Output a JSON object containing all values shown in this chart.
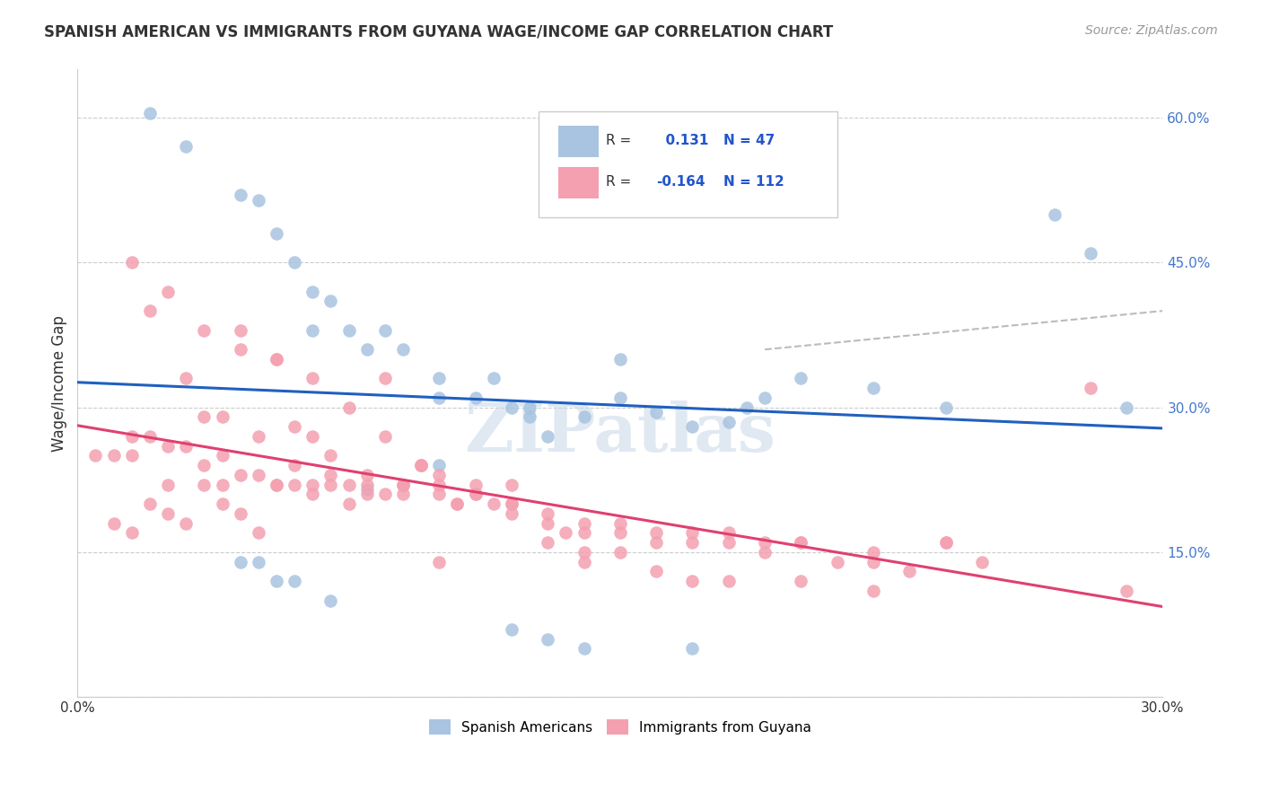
{
  "title": "SPANISH AMERICAN VS IMMIGRANTS FROM GUYANA WAGE/INCOME GAP CORRELATION CHART",
  "source": "Source: ZipAtlas.com",
  "ylabel": "Wage/Income Gap",
  "xlim": [
    0.0,
    0.3
  ],
  "ylim": [
    0.0,
    0.65
  ],
  "yticks_right": [
    0.0,
    0.15,
    0.3,
    0.45,
    0.6
  ],
  "yticklabels_right": [
    "",
    "15.0%",
    "30.0%",
    "45.0%",
    "60.0%"
  ],
  "blue_R": 0.131,
  "blue_N": 47,
  "pink_R": -0.164,
  "pink_N": 112,
  "blue_color": "#a8c4e0",
  "pink_color": "#f4a0b0",
  "blue_line_color": "#2060c0",
  "pink_line_color": "#e04070",
  "watermark": "ZIPatlas",
  "blue_scatter_x": [
    0.02,
    0.03,
    0.045,
    0.05,
    0.055,
    0.06,
    0.065,
    0.065,
    0.07,
    0.075,
    0.08,
    0.085,
    0.09,
    0.1,
    0.1,
    0.11,
    0.115,
    0.12,
    0.125,
    0.125,
    0.13,
    0.14,
    0.15,
    0.15,
    0.16,
    0.17,
    0.18,
    0.185,
    0.19,
    0.2,
    0.22,
    0.24,
    0.07,
    0.06,
    0.055,
    0.05,
    0.045,
    0.08,
    0.09,
    0.1,
    0.12,
    0.13,
    0.14,
    0.17,
    0.27,
    0.28,
    0.29
  ],
  "blue_scatter_y": [
    0.605,
    0.57,
    0.52,
    0.515,
    0.48,
    0.45,
    0.42,
    0.38,
    0.41,
    0.38,
    0.36,
    0.38,
    0.36,
    0.33,
    0.31,
    0.31,
    0.33,
    0.3,
    0.3,
    0.29,
    0.27,
    0.29,
    0.35,
    0.31,
    0.295,
    0.28,
    0.285,
    0.3,
    0.31,
    0.33,
    0.32,
    0.3,
    0.1,
    0.12,
    0.12,
    0.14,
    0.14,
    0.215,
    0.22,
    0.24,
    0.07,
    0.06,
    0.05,
    0.05,
    0.5,
    0.46,
    0.3
  ],
  "pink_scatter_x": [
    0.005,
    0.01,
    0.015,
    0.015,
    0.02,
    0.02,
    0.025,
    0.025,
    0.03,
    0.03,
    0.035,
    0.035,
    0.04,
    0.04,
    0.04,
    0.045,
    0.045,
    0.05,
    0.05,
    0.055,
    0.055,
    0.06,
    0.06,
    0.065,
    0.065,
    0.07,
    0.07,
    0.075,
    0.08,
    0.08,
    0.085,
    0.09,
    0.09,
    0.095,
    0.1,
    0.1,
    0.105,
    0.11,
    0.115,
    0.12,
    0.12,
    0.13,
    0.135,
    0.14,
    0.14,
    0.15,
    0.16,
    0.17,
    0.18,
    0.19,
    0.2,
    0.21,
    0.22,
    0.23,
    0.24,
    0.25,
    0.28,
    0.01,
    0.015,
    0.02,
    0.025,
    0.03,
    0.035,
    0.04,
    0.045,
    0.05,
    0.055,
    0.06,
    0.065,
    0.07,
    0.075,
    0.08,
    0.085,
    0.09,
    0.095,
    0.1,
    0.105,
    0.11,
    0.12,
    0.13,
    0.14,
    0.15,
    0.16,
    0.17,
    0.18,
    0.19,
    0.2,
    0.22,
    0.24,
    0.015,
    0.025,
    0.035,
    0.045,
    0.055,
    0.065,
    0.075,
    0.085,
    0.095,
    0.1,
    0.11,
    0.12,
    0.13,
    0.14,
    0.15,
    0.16,
    0.17,
    0.18,
    0.2,
    0.22,
    0.29
  ],
  "pink_scatter_y": [
    0.25,
    0.25,
    0.27,
    0.25,
    0.4,
    0.27,
    0.26,
    0.22,
    0.33,
    0.26,
    0.29,
    0.24,
    0.29,
    0.25,
    0.22,
    0.38,
    0.23,
    0.27,
    0.23,
    0.35,
    0.22,
    0.28,
    0.22,
    0.27,
    0.22,
    0.25,
    0.22,
    0.2,
    0.23,
    0.21,
    0.33,
    0.22,
    0.21,
    0.24,
    0.22,
    0.21,
    0.2,
    0.21,
    0.2,
    0.2,
    0.22,
    0.16,
    0.17,
    0.18,
    0.15,
    0.17,
    0.16,
    0.16,
    0.16,
    0.15,
    0.16,
    0.14,
    0.14,
    0.13,
    0.16,
    0.14,
    0.32,
    0.18,
    0.17,
    0.2,
    0.19,
    0.18,
    0.22,
    0.2,
    0.19,
    0.17,
    0.22,
    0.24,
    0.21,
    0.23,
    0.22,
    0.22,
    0.21,
    0.22,
    0.24,
    0.23,
    0.2,
    0.21,
    0.19,
    0.19,
    0.17,
    0.18,
    0.17,
    0.17,
    0.17,
    0.16,
    0.16,
    0.15,
    0.16,
    0.45,
    0.42,
    0.38,
    0.36,
    0.35,
    0.33,
    0.3,
    0.27,
    0.24,
    0.14,
    0.22,
    0.2,
    0.18,
    0.14,
    0.15,
    0.13,
    0.12,
    0.12,
    0.12,
    0.11,
    0.11,
    0.12
  ]
}
